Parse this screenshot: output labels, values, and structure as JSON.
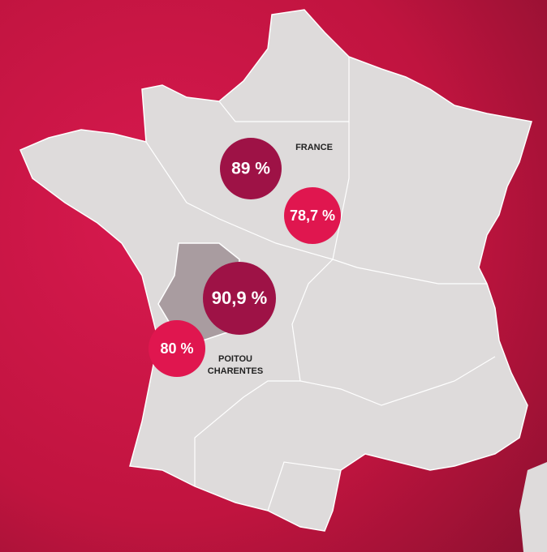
{
  "map": {
    "regions": [
      {
        "name": "FRANCE",
        "values": [
          "89 %",
          "78,7 %"
        ]
      },
      {
        "name_lines": [
          "POITOU",
          "CHARENTES"
        ],
        "values": [
          "90,9 %",
          "80 %"
        ]
      }
    ]
  }
}
